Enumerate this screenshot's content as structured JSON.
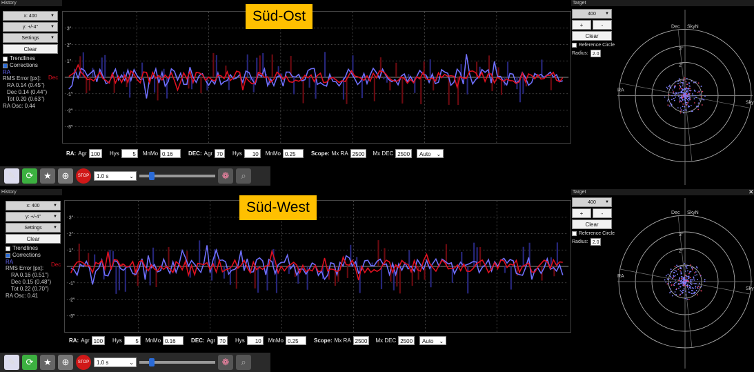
{
  "panels": [
    {
      "label": "Süd-Ost",
      "history_title": "History",
      "target_title": "Target",
      "x_scale": "x: 400",
      "y_scale": "y: +/-4''",
      "settings": "Settings",
      "clear": "Clear",
      "trendlines": "Trendlines",
      "corrections": "Corrections",
      "legend_ra": "RA",
      "legend_dec": "Dec",
      "rms_title": "RMS Error [px]:",
      "rms_ra": "RA 0.14 (0.45'')",
      "rms_dec": "Dec 0.14 (0.44'')",
      "rms_tot": "Tot 0.20 (0.63'')",
      "ra_osc": "RA Osc: 0.44",
      "y_ticks": [
        "3''",
        "2''",
        "1''",
        "-1''",
        "-2''",
        "-3''"
      ],
      "controls": {
        "ra_label": "RA:",
        "agr": "Agr",
        "ra_agr": "100",
        "hys": "Hys",
        "ra_hys": "5",
        "mnmo": "MnMo",
        "ra_mnmo": "0.16",
        "dec_label": "DEC:",
        "dec_agr": "70",
        "dec_hys": "10",
        "dec_mnmo": "0.25",
        "scope": "Scope:",
        "mx_ra": "Mx RA",
        "mx_ra_val": "2500",
        "mx_dec": "Mx DEC",
        "mx_dec_val": "2500",
        "auto": "Auto"
      },
      "toolbar": {
        "exposure": "1.0 s"
      },
      "target": {
        "scale": "400",
        "plus": "+",
        "minus": "-",
        "clear": "Clear",
        "reference_circle": "Reference Circle",
        "radius_label": "Radius:",
        "radius": "2.0",
        "dec": "Dec",
        "skyn": "SkyN",
        "ra": "RA",
        "skye": "SkyE",
        "ring_labels": [
          "3''",
          "2''",
          "1''"
        ]
      }
    },
    {
      "label": "Süd-West",
      "history_title": "History",
      "target_title": "Target",
      "x_scale": "x: 400",
      "y_scale": "y: +/-4''",
      "settings": "Settings",
      "clear": "Clear",
      "trendlines": "Trendlines",
      "corrections": "Corrections",
      "legend_ra": "RA",
      "legend_dec": "Dec",
      "rms_title": "RMS Error [px]:",
      "rms_ra": "RA 0.16 (0.51'')",
      "rms_dec": "Dec 0.15 (0.48'')",
      "rms_tot": "Tot 0.22 (0.70'')",
      "ra_osc": "RA Osc: 0.41",
      "y_ticks": [
        "3''",
        "2''",
        "1''",
        "-1''",
        "-2''",
        "-3''"
      ],
      "controls": {
        "ra_label": "RA:",
        "agr": "Agr",
        "ra_agr": "100",
        "hys": "Hys",
        "ra_hys": "5",
        "mnmo": "MnMo",
        "ra_mnmo": "0.16",
        "dec_label": "DEC:",
        "dec_agr": "70",
        "dec_hys": "10",
        "dec_mnmo": "0.25",
        "scope": "Scope:",
        "mx_ra": "Mx RA",
        "mx_ra_val": "2500",
        "mx_dec": "Mx DEC",
        "mx_dec_val": "2500",
        "auto": "Auto"
      },
      "toolbar": {
        "exposure": "1.0 s"
      },
      "target": {
        "scale": "400",
        "plus": "+",
        "minus": "-",
        "clear": "Clear",
        "reference_circle": "Reference Circle",
        "radius_label": "Radius:",
        "radius": "2.0",
        "dec": "Dec",
        "skyn": "SkyN",
        "ra": "RA",
        "skye": "SkyE",
        "ring_labels": [
          "3''",
          "2''",
          "1''"
        ]
      }
    }
  ],
  "colors": {
    "ra": "#7070ff",
    "dec": "#e01020",
    "label_bg": "#ffc000"
  }
}
